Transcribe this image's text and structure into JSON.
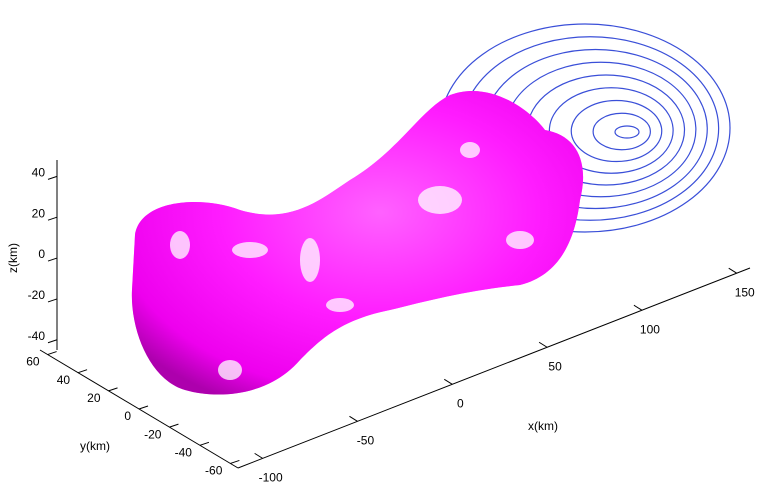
{
  "chart_data": {
    "type": "surface3d",
    "xlabel": "x(km)",
    "ylabel": "y(km)",
    "zlabel": "z(km)",
    "xlim": [
      -113,
      157
    ],
    "ylim": [
      -65,
      65
    ],
    "zlim": [
      -45,
      48
    ],
    "xticks": [
      -100,
      -50,
      0,
      50,
      100,
      150
    ],
    "yticks": [
      -60,
      -40,
      -20,
      0,
      20,
      40,
      60
    ],
    "zticks": [
      -40,
      -20,
      0,
      20,
      40
    ],
    "color": "#ff00ff",
    "contour_color": "#3a4fd8"
  }
}
